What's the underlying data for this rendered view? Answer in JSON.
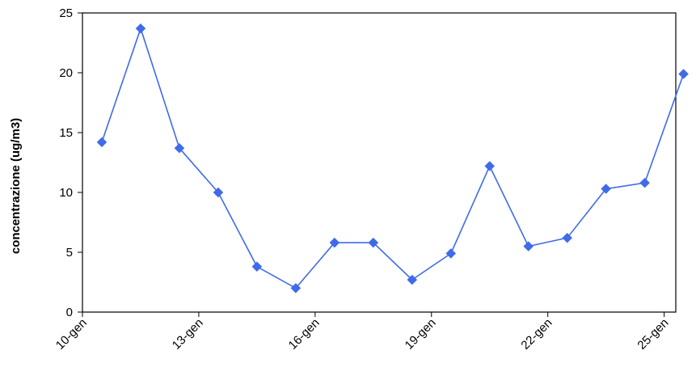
{
  "chart_data": {
    "type": "line",
    "title": "",
    "xlabel": "",
    "ylabel": "concentrazione (ug/m3)",
    "ylim": [
      0,
      25
    ],
    "yticks": [
      0,
      5,
      10,
      15,
      20,
      25
    ],
    "x_tick_labels": [
      "10-gen",
      "13-gen",
      "16-gen",
      "19-gen",
      "22-gen",
      "25-gen"
    ],
    "x_tick_days": [
      10,
      13,
      16,
      19,
      22,
      25
    ],
    "xlim_days": [
      10,
      25.3
    ],
    "grid": false,
    "legend": "none",
    "series": [
      {
        "color": "#3f6bea",
        "marker": "diamond",
        "x_days": [
          10.5,
          11.5,
          12.5,
          13.5,
          14.5,
          15.5,
          16.5,
          17.5,
          18.5,
          19.5,
          20.5,
          21.5,
          22.5,
          23.5,
          24.5,
          25.5
        ],
        "values": [
          14.2,
          23.7,
          13.7,
          10.0,
          3.8,
          2.0,
          5.8,
          5.8,
          2.7,
          4.9,
          12.2,
          5.5,
          6.2,
          10.3,
          10.8,
          19.9
        ]
      }
    ]
  }
}
